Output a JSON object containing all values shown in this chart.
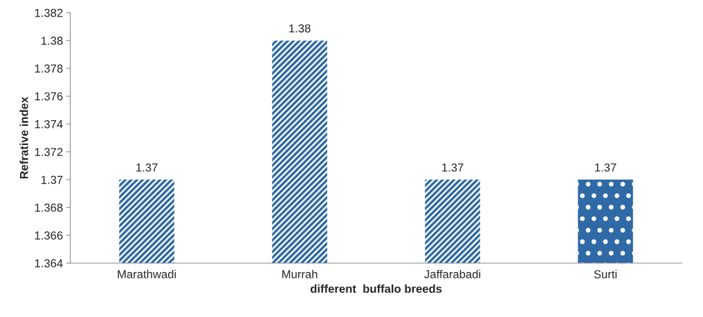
{
  "chart_data": {
    "type": "bar",
    "categories": [
      "Marathwadi",
      "Murrah",
      "Jaffarabadi",
      "Surti"
    ],
    "values": [
      1.37,
      1.38,
      1.37,
      1.37
    ],
    "colors": [
      "#2f6aa6",
      "#2f6aa6",
      "#2f6aa6",
      "#2f6aa6"
    ],
    "xlabel": "different  buffalo breeds",
    "ylabel": "Refrative index",
    "ylim": [
      1.364,
      1.382
    ],
    "yticks": [
      1.364,
      1.366,
      1.368,
      1.37,
      1.372,
      1.374,
      1.376,
      1.378,
      1.38,
      1.382
    ],
    "data_labels": true,
    "grid": false
  }
}
